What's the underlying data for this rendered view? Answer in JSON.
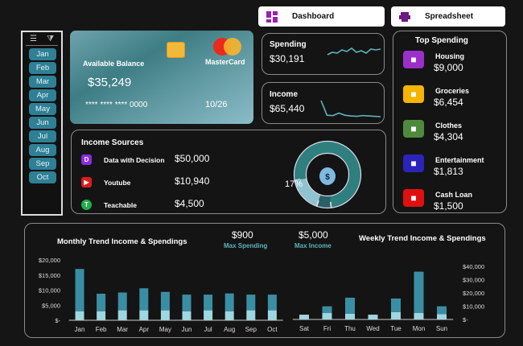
{
  "nav": {
    "dashboard": "Dashboard",
    "spreadsheet": "Spreadsheet",
    "dashboard_icon": "dashboard-grid-icon",
    "spreadsheet_icon": "spreadsheet-icon",
    "icon_color": "#9b1fb0"
  },
  "slicer": {
    "months": [
      "Jan",
      "Feb",
      "Mar",
      "Apr",
      "May",
      "Jun",
      "Jul",
      "Aug",
      "Sep",
      "Oct"
    ],
    "multi_select_icon": "multi-select-icon",
    "clear_filter_icon": "clear-filter-icon"
  },
  "card": {
    "label": "Available Balance",
    "balance": "$35,249",
    "number": "**** **** **** 0000",
    "expiry": "10/26",
    "brand": "MasterCard"
  },
  "spending": {
    "label": "Spending",
    "value": "$30,191",
    "trend": [
      3,
      3.3,
      3.2,
      3.6,
      3.4,
      3.8,
      3.3,
      3.5,
      3.2,
      3.7,
      3.6,
      3.7
    ]
  },
  "income": {
    "label": "Income",
    "value": "$65,440",
    "trend": [
      8,
      4,
      3.9,
      4.6,
      4,
      3.8,
      3.7,
      3.9,
      3.8,
      3.7,
      3.6
    ]
  },
  "income_sources": {
    "title": "Income Sources",
    "items": [
      {
        "name": "Data with Decision",
        "value": "$50,000",
        "color": "#8a2be2",
        "icon": "D"
      },
      {
        "name": "Youtube",
        "value": "$10,940",
        "color": "#e01b1b",
        "icon": "▶"
      },
      {
        "name": "Teachable",
        "value": "$4,500",
        "color": "#1fae4b",
        "icon": "T"
      }
    ],
    "donut": [
      {
        "pct": 76,
        "label": "76%",
        "color": "#2f7f7f"
      },
      {
        "pct": 7,
        "label": "7%",
        "color": "#2a5f66"
      },
      {
        "pct": 17,
        "label": "17%",
        "color": "#8fc3cf"
      }
    ],
    "center_icon": "money-bag-icon"
  },
  "top_spending": {
    "title": "Top Spending",
    "items": [
      {
        "name": "Housing",
        "value": "$9,000",
        "color": "#9b2fc9",
        "icon": "house-dollar-icon"
      },
      {
        "name": "Groceries",
        "value": "$6,454",
        "color": "#f5b400",
        "icon": "groceries-icon"
      },
      {
        "name": "Clothes",
        "value": "$4,304",
        "color": "#4f8a3c",
        "icon": "shirt-icon"
      },
      {
        "name": "Entertainment",
        "value": "$1,813",
        "color": "#2b24b8",
        "icon": "film-reel-icon"
      },
      {
        "name": "Cash Loan",
        "value": "$1,500",
        "color": "#e01010",
        "icon": "cash-loan-icon"
      }
    ]
  },
  "kpis": {
    "max_spending": "$900",
    "max_spending_label": "Max Spending",
    "max_income": "$5,000",
    "max_income_label": "Max Income"
  },
  "chart_data": [
    {
      "type": "bar",
      "stacked": true,
      "title": "Monthly Trend Income & Spendings",
      "categories": [
        "Jan",
        "Feb",
        "Mar",
        "Apr",
        "May",
        "Jun",
        "Jul",
        "Aug",
        "Sep",
        "Oct"
      ],
      "series": [
        {
          "values": [
            3000,
            3000,
            3300,
            3300,
            3300,
            3000,
            3300,
            3000,
            3300,
            3300
          ],
          "color": "#9fd6df"
        },
        {
          "values": [
            14000,
            5800,
            5900,
            7300,
            6100,
            5500,
            5200,
            5900,
            5200,
            5200
          ],
          "color": "#3a8ea3"
        }
      ],
      "yticks": [
        "$20,000",
        "$15,000",
        "$10,000",
        "$5,000",
        "$-"
      ],
      "ylim": [
        0,
        20000
      ],
      "yaxis": "left"
    },
    {
      "type": "bar",
      "stacked": true,
      "title": "Weekly Trend Income & Spendings",
      "categories": [
        "Sat",
        "Fri",
        "Thu",
        "Wed",
        "Tue",
        "Mon",
        "Sun"
      ],
      "series": [
        {
          "values": [
            3600,
            5000,
            4400,
            3600,
            5500,
            5000,
            4000
          ],
          "color": "#9fd6df"
        },
        {
          "values": [
            0,
            4900,
            12000,
            0,
            10300,
            31000,
            5900
          ],
          "color": "#3a8ea3"
        }
      ],
      "yticks": [
        "$40,000",
        "$30,000",
        "$20,000",
        "$10,000",
        "$-"
      ],
      "ylim": [
        0,
        40000
      ],
      "yaxis": "right"
    }
  ]
}
